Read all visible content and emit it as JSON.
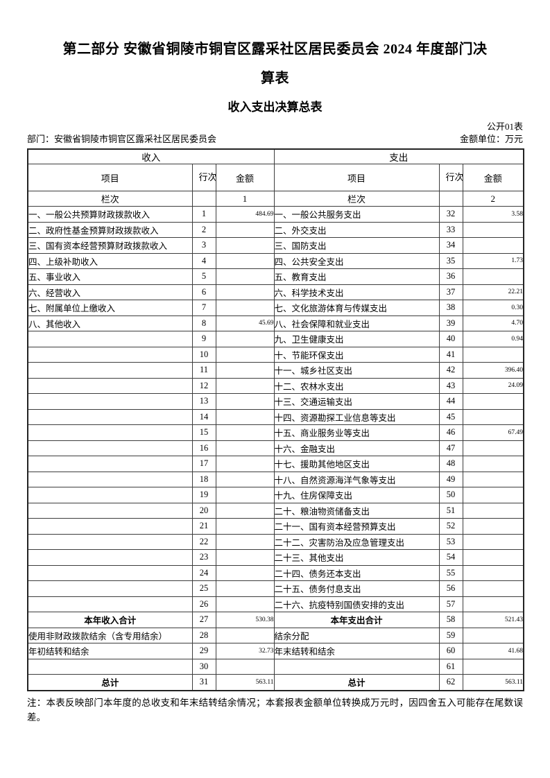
{
  "header": {
    "title_lines": [
      "第二部分 安徽省铜陵市铜官区露采社区居民委员会 2024 年度部门决",
      "算表"
    ],
    "subtitle": "收入支出决算总表",
    "table_code": "公开01表",
    "department": "部门：安徽省铜陵市铜官区露采社区居民委员会",
    "unit": "金额单位：万元"
  },
  "table": {
    "income_section": "收入",
    "expense_section": "支出",
    "col_item": "项目",
    "col_line": "行次",
    "col_amount": "金额",
    "index_label_income": "栏次",
    "index_label_expense": "栏次",
    "income_col_index": "1",
    "expense_col_index": "2",
    "rows": [
      {
        "income_item": "一、一般公共预算财政拨款收入",
        "income_line": "1",
        "income_amount": "484.69",
        "expense_item": "一、一般公共服务支出",
        "expense_line": "32",
        "expense_amount": "3.58",
        "emphasis": false
      },
      {
        "income_item": "二、政府性基金预算财政拨款收入",
        "income_line": "2",
        "income_amount": "",
        "expense_item": "二、外交支出",
        "expense_line": "33",
        "expense_amount": "",
        "emphasis": false
      },
      {
        "income_item": "三、国有资本经营预算财政拨款收入",
        "income_line": "3",
        "income_amount": "",
        "expense_item": "三、国防支出",
        "expense_line": "34",
        "expense_amount": "",
        "emphasis": false
      },
      {
        "income_item": "四、上级补助收入",
        "income_line": "4",
        "income_amount": "",
        "expense_item": "四、公共安全支出",
        "expense_line": "35",
        "expense_amount": "1.73",
        "emphasis": false
      },
      {
        "income_item": "五、事业收入",
        "income_line": "5",
        "income_amount": "",
        "expense_item": "五、教育支出",
        "expense_line": "36",
        "expense_amount": "",
        "emphasis": false
      },
      {
        "income_item": "六、经营收入",
        "income_line": "6",
        "income_amount": "",
        "expense_item": "六、科学技术支出",
        "expense_line": "37",
        "expense_amount": "22.21",
        "emphasis": false
      },
      {
        "income_item": "七、附属单位上缴收入",
        "income_line": "7",
        "income_amount": "",
        "expense_item": "七、文化旅游体育与传媒支出",
        "expense_line": "38",
        "expense_amount": "0.30",
        "emphasis": false
      },
      {
        "income_item": "八、其他收入",
        "income_line": "8",
        "income_amount": "45.69",
        "expense_item": "八、社会保障和就业支出",
        "expense_line": "39",
        "expense_amount": "4.70",
        "emphasis": false
      },
      {
        "income_item": "",
        "income_line": "9",
        "income_amount": "",
        "expense_item": "九、卫生健康支出",
        "expense_line": "40",
        "expense_amount": "0.94",
        "emphasis": false
      },
      {
        "income_item": "",
        "income_line": "10",
        "income_amount": "",
        "expense_item": "十、节能环保支出",
        "expense_line": "41",
        "expense_amount": "",
        "emphasis": false
      },
      {
        "income_item": "",
        "income_line": "11",
        "income_amount": "",
        "expense_item": "十一、城乡社区支出",
        "expense_line": "42",
        "expense_amount": "396.40",
        "emphasis": false
      },
      {
        "income_item": "",
        "income_line": "12",
        "income_amount": "",
        "expense_item": "十二、农林水支出",
        "expense_line": "43",
        "expense_amount": "24.09",
        "emphasis": false
      },
      {
        "income_item": "",
        "income_line": "13",
        "income_amount": "",
        "expense_item": "十三、交通运输支出",
        "expense_line": "44",
        "expense_amount": "",
        "emphasis": false
      },
      {
        "income_item": "",
        "income_line": "14",
        "income_amount": "",
        "expense_item": "十四、资源勘探工业信息等支出",
        "expense_line": "45",
        "expense_amount": "",
        "emphasis": false
      },
      {
        "income_item": "",
        "income_line": "15",
        "income_amount": "",
        "expense_item": "十五、商业服务业等支出",
        "expense_line": "46",
        "expense_amount": "67.49",
        "emphasis": false
      },
      {
        "income_item": "",
        "income_line": "16",
        "income_amount": "",
        "expense_item": "十六、金融支出",
        "expense_line": "47",
        "expense_amount": "",
        "emphasis": false
      },
      {
        "income_item": "",
        "income_line": "17",
        "income_amount": "",
        "expense_item": "十七、援助其他地区支出",
        "expense_line": "48",
        "expense_amount": "",
        "emphasis": false
      },
      {
        "income_item": "",
        "income_line": "18",
        "income_amount": "",
        "expense_item": "十八、自然资源海洋气象等支出",
        "expense_line": "49",
        "expense_amount": "",
        "emphasis": false
      },
      {
        "income_item": "",
        "income_line": "19",
        "income_amount": "",
        "expense_item": "十九、住房保障支出",
        "expense_line": "50",
        "expense_amount": "",
        "emphasis": false
      },
      {
        "income_item": "",
        "income_line": "20",
        "income_amount": "",
        "expense_item": "二十、粮油物资储备支出",
        "expense_line": "51",
        "expense_amount": "",
        "emphasis": false
      },
      {
        "income_item": "",
        "income_line": "21",
        "income_amount": "",
        "expense_item": "二十一、国有资本经营预算支出",
        "expense_line": "52",
        "expense_amount": "",
        "emphasis": false
      },
      {
        "income_item": "",
        "income_line": "22",
        "income_amount": "",
        "expense_item": "二十二、灾害防治及应急管理支出",
        "expense_line": "53",
        "expense_amount": "",
        "emphasis": false
      },
      {
        "income_item": "",
        "income_line": "23",
        "income_amount": "",
        "expense_item": "二十三、其他支出",
        "expense_line": "54",
        "expense_amount": "",
        "emphasis": false
      },
      {
        "income_item": "",
        "income_line": "24",
        "income_amount": "",
        "expense_item": "二十四、债务还本支出",
        "expense_line": "55",
        "expense_amount": "",
        "emphasis": false
      },
      {
        "income_item": "",
        "income_line": "25",
        "income_amount": "",
        "expense_item": "二十五、债务付息支出",
        "expense_line": "56",
        "expense_amount": "",
        "emphasis": false
      },
      {
        "income_item": "",
        "income_line": "26",
        "income_amount": "",
        "expense_item": "二十六、抗疫特别国债安排的支出",
        "expense_line": "57",
        "expense_amount": "",
        "emphasis": false
      },
      {
        "income_item": "本年收入合计",
        "income_line": "27",
        "income_amount": "530.38",
        "expense_item": "本年支出合计",
        "expense_line": "58",
        "expense_amount": "521.43",
        "emphasis": true
      },
      {
        "income_item": "使用非财政拨款结余（含专用结余）",
        "income_line": "28",
        "income_amount": "",
        "expense_item": "结余分配",
        "expense_line": "59",
        "expense_amount": "",
        "emphasis": false
      },
      {
        "income_item": "年初结转和结余",
        "income_line": "29",
        "income_amount": "32.73",
        "expense_item": "年末结转和结余",
        "expense_line": "60",
        "expense_amount": "41.68",
        "emphasis": false
      },
      {
        "income_item": "",
        "income_line": "30",
        "income_amount": "",
        "expense_item": "",
        "expense_line": "61",
        "expense_amount": "",
        "emphasis": false
      },
      {
        "income_item": "总计",
        "income_line": "31",
        "income_amount": "563.11",
        "expense_item": "总计",
        "expense_line": "62",
        "expense_amount": "563.11",
        "emphasis": true
      }
    ]
  },
  "footer": {
    "note": "注：本表反映部门本年度的总收支和年末结转结余情况；本套报表金额单位转换成万元时，因四舍五入可能存在尾数误差。"
  }
}
